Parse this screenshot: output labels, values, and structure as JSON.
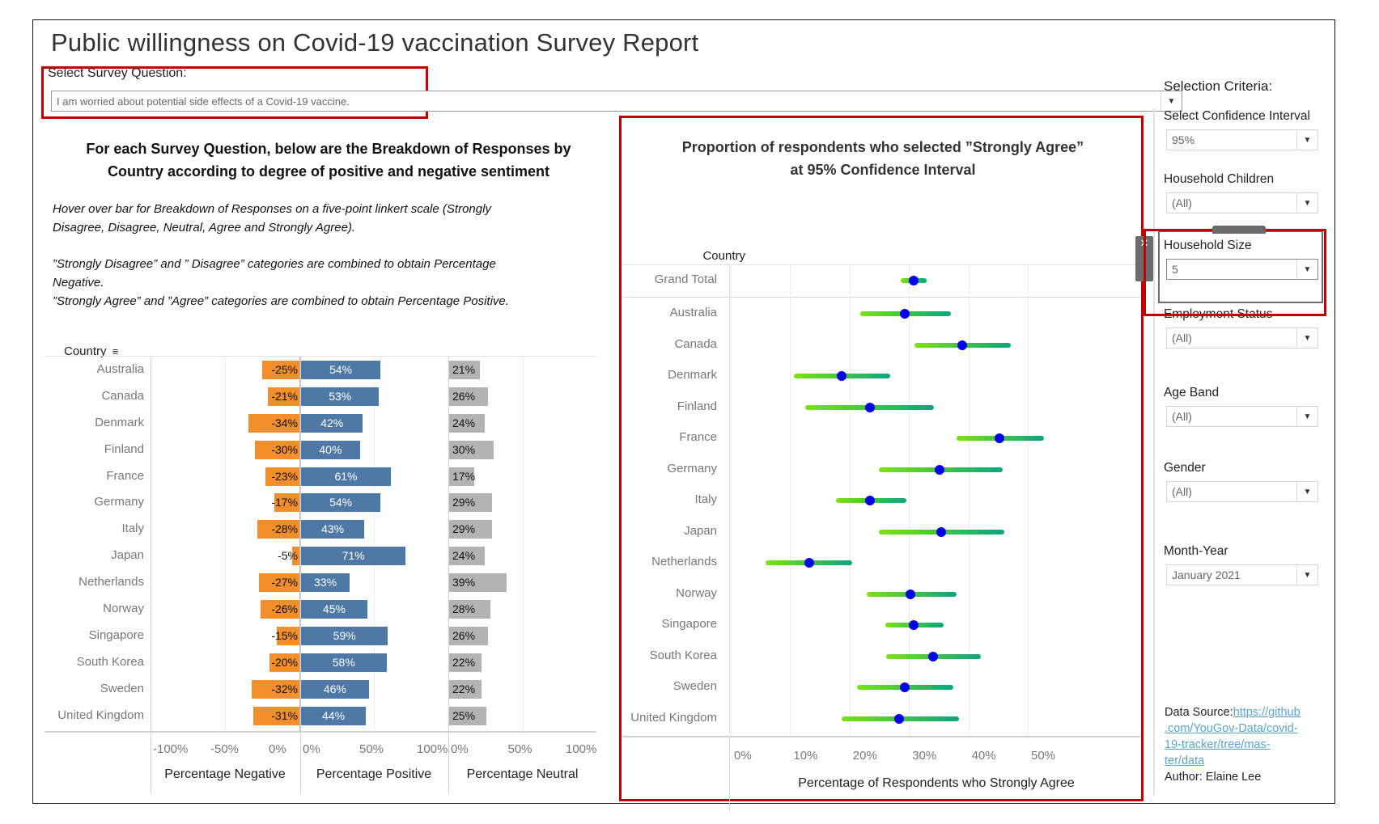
{
  "header": {
    "title": "Public willingness on Covid-19 vaccination Survey Report",
    "question_label": "Select Survey Question:",
    "question_value": "I am worried about potential side effects of a Covid-19 vaccine."
  },
  "left_panel": {
    "heading_line1": "For each Survey Question, below are the Breakdown of Responses by",
    "heading_line2": "Country according to degree of positive and negative sentiment",
    "notes": [
      "Hover over bar for Breakdown of Responses  on a five-point linkert scale (Strongly",
      "Disagree, Disagree, Neutral, Agree and Strongly Agree).",
      "”Strongly Disagree” and ” Disagree” categories are combined to obtain Percentage",
      "Negative.",
      "”Strongly Agree” and ”Agree” categories are combined to obtain Percentage Positive."
    ],
    "row_header": "Country",
    "sort_icon": "sort-descending-icon"
  },
  "right_panel": {
    "heading_line1": "Proportion of respondents who selected ”Strongly Agree”",
    "heading_line2": "at 95% Confidence Interval",
    "row_header": "Country"
  },
  "sidebar": {
    "heading": "Selection Criteria:",
    "filters": [
      {
        "label": "Select Confidence Interval",
        "value": "95%"
      },
      {
        "label": "Household Children",
        "value": "(All)"
      },
      {
        "label": "Household Size",
        "value": "5"
      },
      {
        "label": "Employment Status",
        "value": "(All)"
      },
      {
        "label": "Age Band",
        "value": "(All)"
      },
      {
        "label": "Gender",
        "value": "(All)"
      },
      {
        "label": "Month-Year",
        "value": "January 2021"
      }
    ],
    "source_label": "Data Source:",
    "source_link_lines": [
      "https://github",
      ".com/YouGov-Data/covid-",
      "19-tracker/tree/mas-",
      "ter/data"
    ],
    "author": "Author: Elaine Lee"
  },
  "colors": {
    "negative": "#f28e2b",
    "positive": "#4e79a7",
    "neutral": "#b3b3b3",
    "ci_start": "#7be30b",
    "ci_end": "#0aa57e",
    "point": "#0000e6",
    "highlight": "#c00000"
  },
  "chart_data": [
    {
      "type": "bar",
      "title": "Breakdown of Responses by Country (diverging)",
      "categories": [
        "Australia",
        "Canada",
        "Denmark",
        "Finland",
        "France",
        "Germany",
        "Italy",
        "Japan",
        "Netherlands",
        "Norway",
        "Singapore",
        "South Korea",
        "Sweden",
        "United Kingdom"
      ],
      "series": [
        {
          "name": "Percentage Negative",
          "values": [
            -25,
            -21,
            -34,
            -30,
            -23,
            -17,
            -28,
            -5,
            -27,
            -26,
            -15,
            -20,
            -32,
            -31
          ],
          "xlim": [
            -100,
            0
          ],
          "ticks": [
            "-100%",
            "-50%",
            "0%"
          ]
        },
        {
          "name": "Percentage Positive",
          "values": [
            54,
            53,
            42,
            40,
            61,
            54,
            43,
            71,
            33,
            45,
            59,
            58,
            46,
            44
          ],
          "xlim": [
            0,
            100
          ],
          "ticks": [
            "0%",
            "50%",
            "100%"
          ]
        },
        {
          "name": "Percentage Neutral",
          "values": [
            21,
            26,
            24,
            30,
            17,
            29,
            29,
            24,
            39,
            28,
            26,
            22,
            22,
            25
          ],
          "xlim": [
            0,
            100
          ],
          "ticks": [
            "0%",
            "50%",
            "100%"
          ]
        }
      ],
      "ylabel": "Country",
      "unit": "%"
    },
    {
      "type": "scatter",
      "title": "Proportion of respondents who selected ”Strongly Agree” at 95% Confidence Interval",
      "xlabel": "Percentage of Respondents who Strongly Agree",
      "ylabel": "Country",
      "xlim": [
        0,
        53
      ],
      "xticks": [
        "0%",
        "10%",
        "20%",
        "30%",
        "40%",
        "50%"
      ],
      "xtick_values": [
        0,
        10,
        20,
        30,
        40,
        50
      ],
      "categories": [
        "Grand Total",
        "Australia",
        "Canada",
        "Denmark",
        "Finland",
        "France",
        "Germany",
        "Italy",
        "Japan",
        "Netherlands",
        "Norway",
        "Singapore",
        "South Korea",
        "Sweden",
        "United Kingdom"
      ],
      "estimate": [
        30.8,
        29.3,
        39.0,
        18.7,
        23.4,
        45.2,
        35.2,
        23.5,
        35.4,
        13.2,
        30.3,
        30.8,
        34.1,
        29.3,
        28.4
      ],
      "ci_low": [
        28.6,
        21.8,
        30.9,
        10.6,
        12.6,
        38.0,
        24.9,
        17.7,
        24.9,
        5.9,
        22.9,
        26.0,
        26.2,
        21.3,
        18.6
      ],
      "ci_high": [
        33.0,
        37.1,
        47.1,
        26.8,
        34.2,
        52.7,
        45.8,
        29.5,
        46.1,
        20.5,
        38.0,
        35.8,
        42.1,
        37.5,
        38.4
      ],
      "unit": "%"
    }
  ]
}
